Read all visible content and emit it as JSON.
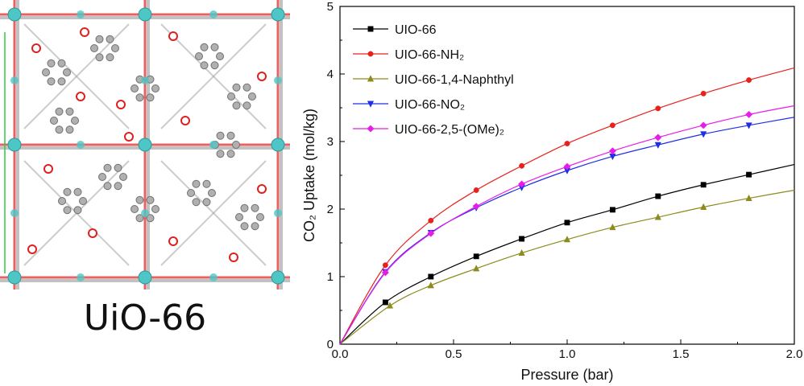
{
  "panel_label": "UiO-66",
  "chart_data": {
    "type": "line",
    "xlabel": "Pressure (bar)",
    "ylabel": "CO₂ Uptake (mol/kg)",
    "xlim": [
      0.0,
      2.0
    ],
    "ylim": [
      0,
      5
    ],
    "xticks": [
      "0.0",
      "0.5",
      "1.0",
      "1.5",
      "2.0"
    ],
    "yticks": [
      "0",
      "1",
      "2",
      "3",
      "4",
      "5"
    ],
    "legend_position": "top-left",
    "series": [
      {
        "name": "UIO-66",
        "color": "#000000",
        "marker": "square",
        "x": [
          0.0,
          0.2,
          0.4,
          0.6,
          0.8,
          1.0,
          1.2,
          1.4,
          1.6,
          1.8,
          2.0
        ],
        "y": [
          0.0,
          0.62,
          1.0,
          1.3,
          1.56,
          1.8,
          1.99,
          2.19,
          2.36,
          2.51,
          2.66
        ]
      },
      {
        "name": "UIO-66-NH₂",
        "color": "#e8211c",
        "marker": "circle",
        "x": [
          0.0,
          0.2,
          0.4,
          0.6,
          0.8,
          1.0,
          1.2,
          1.4,
          1.6,
          1.8,
          2.0
        ],
        "y": [
          0.0,
          1.17,
          1.83,
          2.28,
          2.64,
          2.97,
          3.24,
          3.49,
          3.71,
          3.91,
          4.09
        ]
      },
      {
        "name": "UIO-66-1,4-Naphthyl",
        "color": "#8b8b1e",
        "marker": "triangle-up",
        "x": [
          0.0,
          0.22,
          0.4,
          0.6,
          0.8,
          1.0,
          1.2,
          1.4,
          1.6,
          1.8,
          2.0
        ],
        "y": [
          0.0,
          0.57,
          0.87,
          1.12,
          1.35,
          1.55,
          1.73,
          1.88,
          2.03,
          2.16,
          2.28
        ]
      },
      {
        "name": "UIO-66-NO₂",
        "color": "#1f2fe6",
        "marker": "triangle-down",
        "x": [
          0.0,
          0.2,
          0.4,
          0.6,
          0.8,
          1.0,
          1.2,
          1.4,
          1.6,
          1.8,
          2.0
        ],
        "y": [
          0.0,
          1.07,
          1.65,
          2.02,
          2.32,
          2.57,
          2.78,
          2.95,
          3.11,
          3.24,
          3.36
        ]
      },
      {
        "name": "UIO-66-2,5-(OMe)₂",
        "color": "#e81ce8",
        "marker": "diamond",
        "x": [
          0.0,
          0.2,
          0.4,
          0.6,
          0.8,
          1.0,
          1.2,
          1.4,
          1.6,
          1.8,
          2.0
        ],
        "y": [
          0.0,
          1.06,
          1.64,
          2.04,
          2.37,
          2.63,
          2.86,
          3.06,
          3.24,
          3.4,
          3.53
        ]
      }
    ]
  },
  "colors": {
    "zr_atom": "#4fc6c6",
    "oxygen": "#e02020",
    "carbon": "#9a9a9a",
    "axis": "#000000"
  }
}
